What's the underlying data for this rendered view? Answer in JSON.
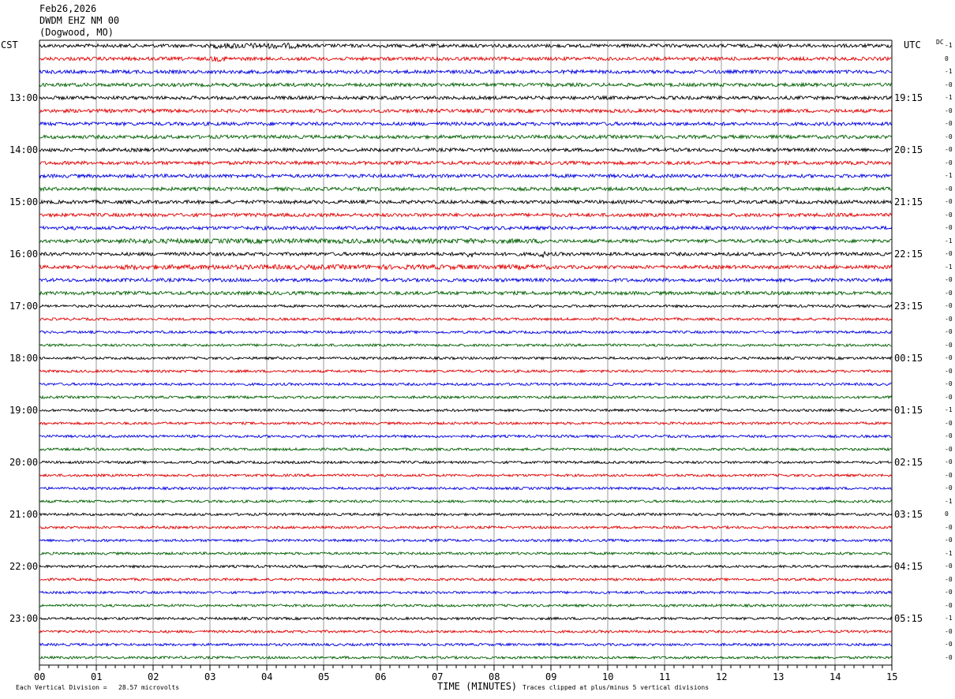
{
  "header": {
    "date": "Feb26,2026",
    "station": "DWDM EHZ NM 00",
    "location": "(Dogwood, MO)"
  },
  "left_tz": "CST",
  "right_tz": "UTC",
  "dc_label": "DC",
  "footer": {
    "scale": "Each Vertical Division =   28.57 microvolts",
    "xlabel": "TIME (MINUTES)",
    "clip": "Traces clipped at plus/minus 5 vertical divisions"
  },
  "colors": {
    "cycle": [
      "#000000",
      "#e00000",
      "#0000e0",
      "#006000"
    ],
    "grid": "#808080"
  },
  "chart_data": {
    "type": "line",
    "title": "",
    "xlabel": "TIME (MINUTES)",
    "xlim": [
      0,
      15
    ],
    "x_ticks": [
      "00",
      "01",
      "02",
      "03",
      "04",
      "05",
      "06",
      "07",
      "08",
      "09",
      "10",
      "11",
      "12",
      "13",
      "14",
      "15"
    ],
    "trace_count": 48,
    "trace_minutes": 15,
    "left_hour_labels": [
      "13:00",
      "14:00",
      "15:00",
      "16:00",
      "17:00",
      "18:00",
      "19:00",
      "20:00",
      "21:00",
      "22:00",
      "23:00"
    ],
    "right_hour_labels": [
      "19:15",
      "20:15",
      "21:15",
      "22:15",
      "23:15",
      "00:15",
      "01:15",
      "02:15",
      "03:15",
      "04:15",
      "05:15"
    ],
    "dc_offsets": [
      "-1",
      "0",
      "-1",
      "-0",
      "-1",
      "-0",
      "-0",
      "-0",
      "-0",
      "-0",
      "-1",
      "-0",
      "-0",
      "-0",
      "-0",
      "-1",
      "-0",
      "-1",
      "-0",
      "-0",
      "-0",
      "-0",
      "-0",
      "-0",
      "-0",
      "-0",
      "-0",
      "-0",
      "-1",
      "-0",
      "-0",
      "-0",
      "-0",
      "-0",
      "-0",
      "-1",
      "0",
      "-0",
      "-0",
      "-1",
      "-0",
      "-0",
      "-0",
      "-0",
      "-1",
      "-0",
      "-0",
      "-0"
    ]
  }
}
